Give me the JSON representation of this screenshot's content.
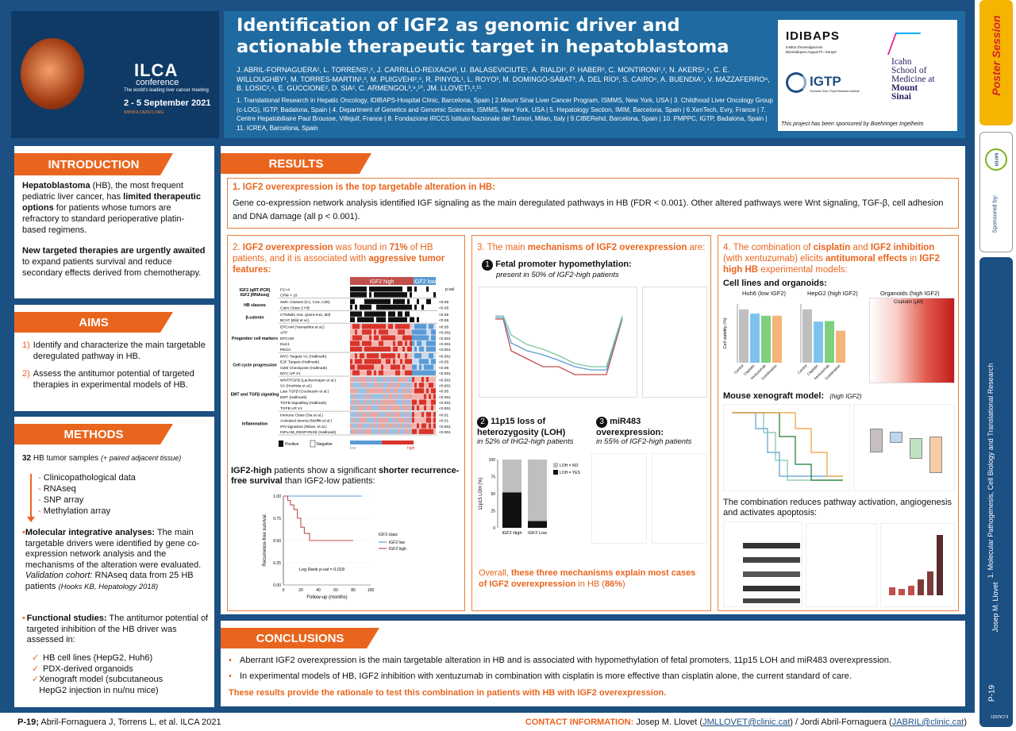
{
  "header": {
    "title_line1": "Identification of IGF2 as genomic driver and",
    "title_line2": "actionable therapeutic target in hepatoblastoma",
    "authors": "J. ABRIL-FORNAGUERA¹, L. TORRENS¹,², J. CARRILLO-REIXACH³, U. BALASEVICIUTE¹, A. RIALDI², P. HABER², C. MONTIRONI¹,², N. AKERS²,⁴, C. E. WILLOUGHBY¹, M. TORRES-MARTIN¹,², M. PUIGVEHI²,⁵, R. PINYOL¹, L. ROYO³, M. DOMINGO-SÀBAT³, À. DEL RÍO³, S. CAIRO⁶, A. BUENDIA⁷, V. MAZZAFERRO⁸, B. LOSIC²,⁴, E. GUCCIONE², D. SIA², C. ARMENGOL³,⁹,¹⁰, JM. LLOVET¹,²,¹¹",
    "affiliations": "1. Translational Research in Hepatic Oncology, IDIBAPS-Hospital Clínic, Barcelona, Spain | 2.Mount Sinai Liver Cancer Program, ISMMS, New York, USA | 3. Childhood Liver Oncology Group (c-LOG), IGTP, Badalona, Spain | 4. Department of Genetics and Genomic Sciences, ISMMS, New York, USA | 5. Hepatology Section, IMIM, Barcelona, Spain | 6.XenTech, Evry, France | 7. Centre Hepatobiliaire Paul Brousse, Villejuif, France | 8. Fondazione IRCCS Istituto Nazionale dei Tumori, Milan, Italy | 9.CIBERehd, Barcelona, Spain | 10. PMPPC, IGTP, Badalona, Spain | 11. ICREA, Barcelona, Spain",
    "conference": {
      "name": "ILCA",
      "sub": "conference",
      "tagline": "The world's leading liver cancer meeting",
      "dates": "2 - 5 September 2021",
      "url": "WWW.ILCA2021.ORG"
    },
    "logos": {
      "idibaps": "IDIBAPS",
      "idibaps_sub": "Institut d'Investigacions Biomèdiques August Pi i Sunyer",
      "igtp": "IGTP",
      "igtp_sub": "Germans Trias i Pujol Research Institute",
      "mountsinai_l1": "Icahn",
      "mountsinai_l2": "School of",
      "mountsinai_l3": "Medicine at",
      "mountsinai_l4": "Mount",
      "mountsinai_l5": "Sinai"
    },
    "sponsor": "This project has been sponsored by Boehringer Ingelheim"
  },
  "sidebar": {
    "poster_session": "Poster Session",
    "sponsored": "Sponsored by:",
    "bayer": "BAYER",
    "topic": "1. Molecular Pathogenesis, Cell Biology and Translational Research",
    "presenter": "Josep M. Llovet",
    "code": "P-19",
    "code_small": "ILCA2021"
  },
  "intro": {
    "title": "INTRODUCTION",
    "p1_bold1": "Hepatoblastoma",
    "p1_text1": " (HB), the most frequent pediatric liver cancer, has ",
    "p1_bold2": "limited therapeutic options",
    "p1_text2": " for patients whose tumors are refractory to standard perioperative platin-based regimens.",
    "p2_bold": "New targeted therapies are urgently awaited",
    "p2_text": " to expand patients survival and reduce secondary effects derived from chemotherapy."
  },
  "aims": {
    "title": "AIMS",
    "items": [
      {
        "n": "1)",
        "text": "Identify and characterize the main targetable deregulated pathway in HB."
      },
      {
        "n": "2)",
        "text": "Assess the antitumor potential of targeted therapies in experimental models of HB."
      }
    ]
  },
  "methods": {
    "title": "METHODS",
    "samples_bold": "32",
    "samples_text": " HB tumor samples ",
    "samples_italic": "(+ paired adjacent tissue)",
    "data_items": [
      "Clinicopathological data",
      "RNAseq",
      "SNP array",
      "Methylation array"
    ],
    "mol_bold": "Molecular integrative analyses:",
    "mol_text": " The main targetable drivers were identified by gene co-expression network analysis and the mechanisms of the alteration were evaluated.",
    "validation_italic": "Validation cohort:",
    "validation_text": " RNAseq data from 25 HB patients ",
    "validation_ref": "(Hooks KB, Hepatology 2018)",
    "func_bold": "Functional studies:",
    "func_text": " The antitumor potential of targeted inhibition of the HB driver was assessed in:",
    "func_items": [
      "HB cell lines (HepG2, Huh6)",
      "PDX-derived organoids",
      "Xenograft model (subcutaneous HepG2 injection in nu/nu mice)"
    ]
  },
  "results": {
    "title": "RESULTS",
    "r1_title": "1. IGF2 overexpression is the top targetable alteration in HB:",
    "r1_text": "Gene co-expression network analysis identified IGF signaling as the main deregulated pathways in HB (FDR < 0.001). Other altered pathways were Wnt signaling, TGF-β, cell adhesion and DNA damage (all p < 0.001).",
    "r2_pre": "2. ",
    "r2_o1": "IGF2 overexpression",
    "r2_t1": " was found in ",
    "r2_o2": "71%",
    "r2_t2": " of HB patients, and it is associated with ",
    "r2_o3": "aggressive tumor features:",
    "heat_high": "IGF2 high",
    "heat_low": "IGF2 low",
    "heat_pval": "p-val",
    "heat_groups": [
      {
        "name": "IGF2 (qRT-PCR)\nIGF2 (RNAseq)",
        "rows": [
          "FC>4",
          "CPM > 10"
        ],
        "p": [
          "",
          ""
        ]
      },
      {
        "name": "HB classes",
        "rows": [
          "SMC Classes (C1, C2a, C2b)",
          "Cairo Class 2 HB"
        ],
        "p": [
          "<0.05",
          "<0.05"
        ]
      },
      {
        "name": "β-catenin",
        "rows": [
          "CTNNB1 mut. (point-mut, del)",
          "BCAT (Bild et al.)"
        ],
        "p": [
          "<0.05",
          "<0.05"
        ]
      },
      {
        "name": "Progenitor cell markers",
        "rows": [
          "EPCAM (Yamashita et al.)",
          "AFP",
          "EPCAM",
          "DLK1",
          "PEG3"
        ],
        "p": [
          "<0.05",
          "<0.001",
          "<0.001",
          "<0.001",
          "<0.001"
        ]
      },
      {
        "name": "Cell cycle progression",
        "rows": [
          "MYC Targets V1 (Hallmark)",
          "E2F Targets (Hallmark)",
          "G2M Checkpoint (Hallmark)",
          "MYC UP V1"
        ],
        "p": [
          "<0.001",
          "<0.05",
          "<0.05",
          "<0.001"
        ]
      },
      {
        "name": "EMT and TGFβ signaling",
        "rows": [
          "WNT/TGFB (Lachenmayer et al.)",
          "S1 (Hoshida et al.)",
          "Late TGFβ (Coulouarn et al.)",
          "EMT (Hallmark)",
          "TGFB Signalling (Hallmark)",
          "TGFB UP V1"
        ],
        "p": [
          "<0.001",
          "<0.001",
          "<0.05",
          "<0.001",
          "<0.001",
          "<0.001"
        ]
      },
      {
        "name": "Inflammation",
        "rows": [
          "Immune Class (Sia et al.)",
          "Activated stroma (Moffitt et al.)",
          "IFN signature (Ribas. et al.)",
          "INFLAM_RESPONSE (Hallmark)"
        ],
        "p": [
          "<0.01",
          "<0.01",
          "<0.001",
          "<0.001"
        ]
      }
    ],
    "heat_legend": {
      "pos": "Positive",
      "neg": "Negative",
      "low": "low",
      "high": "high"
    },
    "km_bold1": "IGF2-high",
    "km_text1": " patients show a significant ",
    "km_bold2": "shorter recurrence-free survival",
    "km_text2": " than IGF2-low patients:",
    "r3_pre": "3. The main ",
    "r3_o1": "mechanisms of IGF2 overexpression",
    "r3_post": " are:",
    "m1_n": "1",
    "m1_title": "Fetal promoter hypomethylation:",
    "m1_sub": "present in 50% of IGF2-high patients",
    "m2_n": "2",
    "m2_title": "11p15 loss of heterozygosity (LOH)",
    "m2_sub": "in 52% of IHG2-high patients",
    "m3_n": "3",
    "m3_title": "miR483 overexpression:",
    "m3_sub": "in 55% of IGF2-high patients",
    "r3_conc_pre": "Overall, ",
    "r3_conc_o": "these three mechanisms explain most cases of IGF2 overexpression",
    "r3_conc_t": " in HB (",
    "r3_conc_p": "86%",
    "r3_conc_end": ")",
    "r4_pre": "4. The combination of ",
    "r4_o1": "cisplatin",
    "r4_t1": " and ",
    "r4_o2": "IGF2 inhibition",
    "r4_t2": " (with xentuzumab) elicits ",
    "r4_o3": "antitumoral effects",
    "r4_t3": " in ",
    "r4_o4": "IGF2 high HB",
    "r4_t4": " experimental models:",
    "r4_cells": "Cell lines and organoids:",
    "huh6": "Huh6 (low IGF2)",
    "hepg2": "HepG2 (high IGF2)",
    "organoids": "Organoids (high IGF2)",
    "cisplatin_um": "Cisplatin (µM)",
    "mouse_bold": "Mouse xenograft model:",
    "mouse_italic": "(high IGF2)",
    "combo_text": "The combination reduces pathway activation, angiogenesis and activates apoptosis:"
  },
  "conclusions": {
    "title": "CONCLUSIONS",
    "items": [
      "Aberrant IGF2 overexpression is the main targetable alteration in HB and is associated with hypomethylation of fetal promoters, 11p15 LOH and miR483 overexpression.",
      "In experimental models of HB, IGF2 inhibition with xentuzumab in combination with cisplatin is more effective than cisplatin alone, the current standard of care."
    ],
    "final": "These results provide the rationale to test this combination in patients with HB with IGF2 overexpression."
  },
  "footer": {
    "left_bold": "P-19;",
    "left_text": " Abril-Fornaguera J, Torrens L, et al.  ILCA 2021",
    "contact_label": "CONTACT INFORMATION:",
    "contact_text": " Josep M. Llovet (",
    "email1": "JMLLOVET@clinic.cat",
    "mid": ") / Jordi Abril-Fornaguera (",
    "email2": "JABRIL@clinic.cat",
    "end": ")"
  },
  "chart_data": [
    {
      "type": "line",
      "title": "",
      "xlabel": "Follow-up (months)",
      "ylabel": "Recurrence-free survival",
      "xlim": [
        0,
        100
      ],
      "ylim": [
        0,
        1
      ],
      "x_ticks": [
        0,
        20,
        40,
        60,
        80,
        100
      ],
      "y_ticks": [
        "0.00",
        "0.25",
        "0.50",
        "0.75",
        "1.00"
      ],
      "series": [
        {
          "name": "IGF2 low",
          "color": "#5b9bd5",
          "x": [
            0,
            10,
            20,
            40,
            60,
            80,
            90
          ],
          "y": [
            1,
            1,
            1,
            1,
            1,
            1,
            1
          ]
        },
        {
          "name": "IGF2 high",
          "color": "#c0504d",
          "x": [
            0,
            5,
            8,
            12,
            16,
            20,
            24,
            30,
            50,
            70,
            80
          ],
          "y": [
            1,
            0.95,
            0.9,
            0.85,
            0.75,
            0.65,
            0.58,
            0.5,
            0.5,
            0.5,
            0.5
          ]
        }
      ],
      "legend_title": "IGF2 class",
      "annotation": "Log Rank p-val = 0.018"
    },
    {
      "type": "bar",
      "title": "",
      "ylabel": "11p15 LOH (%)",
      "categories": [
        "IGF2 High",
        "IGF2 Low"
      ],
      "ylim": [
        0,
        100
      ],
      "y_ticks": [
        0,
        25,
        50,
        75,
        100
      ],
      "series": [
        {
          "name": "LOH = NO",
          "color": "#bfbfbf",
          "values": [
            48,
            90
          ]
        },
        {
          "name": "LOH = YES",
          "color": "#111111",
          "values": [
            52,
            10
          ]
        }
      ]
    },
    {
      "type": "bar",
      "title": "",
      "ylabel": "Cell viability (%)",
      "categories": [
        "Control",
        "Cisplatin",
        "Xentuzumab",
        "Combination"
      ],
      "series": [
        {
          "name": "Huh6 (low IGF2)",
          "values": [
            100,
            92,
            88,
            88
          ]
        },
        {
          "name": "HepG2 (high IGF2)",
          "values": [
            100,
            77,
            78,
            60
          ]
        }
      ]
    }
  ]
}
